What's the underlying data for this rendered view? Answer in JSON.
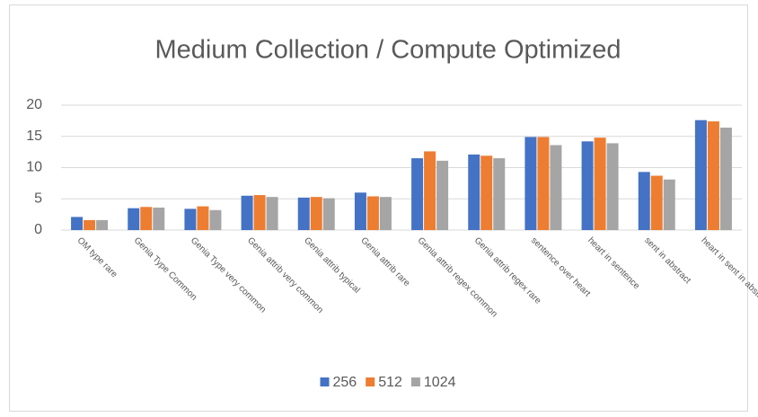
{
  "chart_data": {
    "type": "bar",
    "title": "Medium Collection / Compute Optimized",
    "categories": [
      "OM type rare",
      "Genia Type Common",
      "Genia Type very common",
      "Genia attrib very common",
      "Genia attrib typical",
      "Genia attrib rare",
      "Genia attrib regex common",
      "Genia attrib regex rare",
      "sentence over heart",
      "heart in sentence",
      "sent in abstract",
      "heart in sent in abstract"
    ],
    "series": [
      {
        "name": "256",
        "color": "#4472c4",
        "values": [
          2.1,
          3.5,
          3.4,
          5.5,
          5.2,
          6.0,
          11.5,
          12.1,
          14.9,
          14.2,
          9.3,
          17.6
        ]
      },
      {
        "name": "512",
        "color": "#ed7d31",
        "values": [
          1.6,
          3.7,
          3.8,
          5.6,
          5.3,
          5.4,
          12.6,
          11.9,
          14.9,
          14.8,
          8.7,
          17.4
        ]
      },
      {
        "name": "1024",
        "color": "#a5a5a5",
        "values": [
          1.6,
          3.6,
          3.2,
          5.3,
          5.1,
          5.3,
          11.1,
          11.5,
          13.6,
          13.9,
          8.1,
          16.4
        ]
      }
    ],
    "ylim": [
      0,
      20
    ],
    "yticks": [
      0,
      5,
      10,
      15,
      20
    ],
    "grid": true,
    "legend": "bottom"
  }
}
